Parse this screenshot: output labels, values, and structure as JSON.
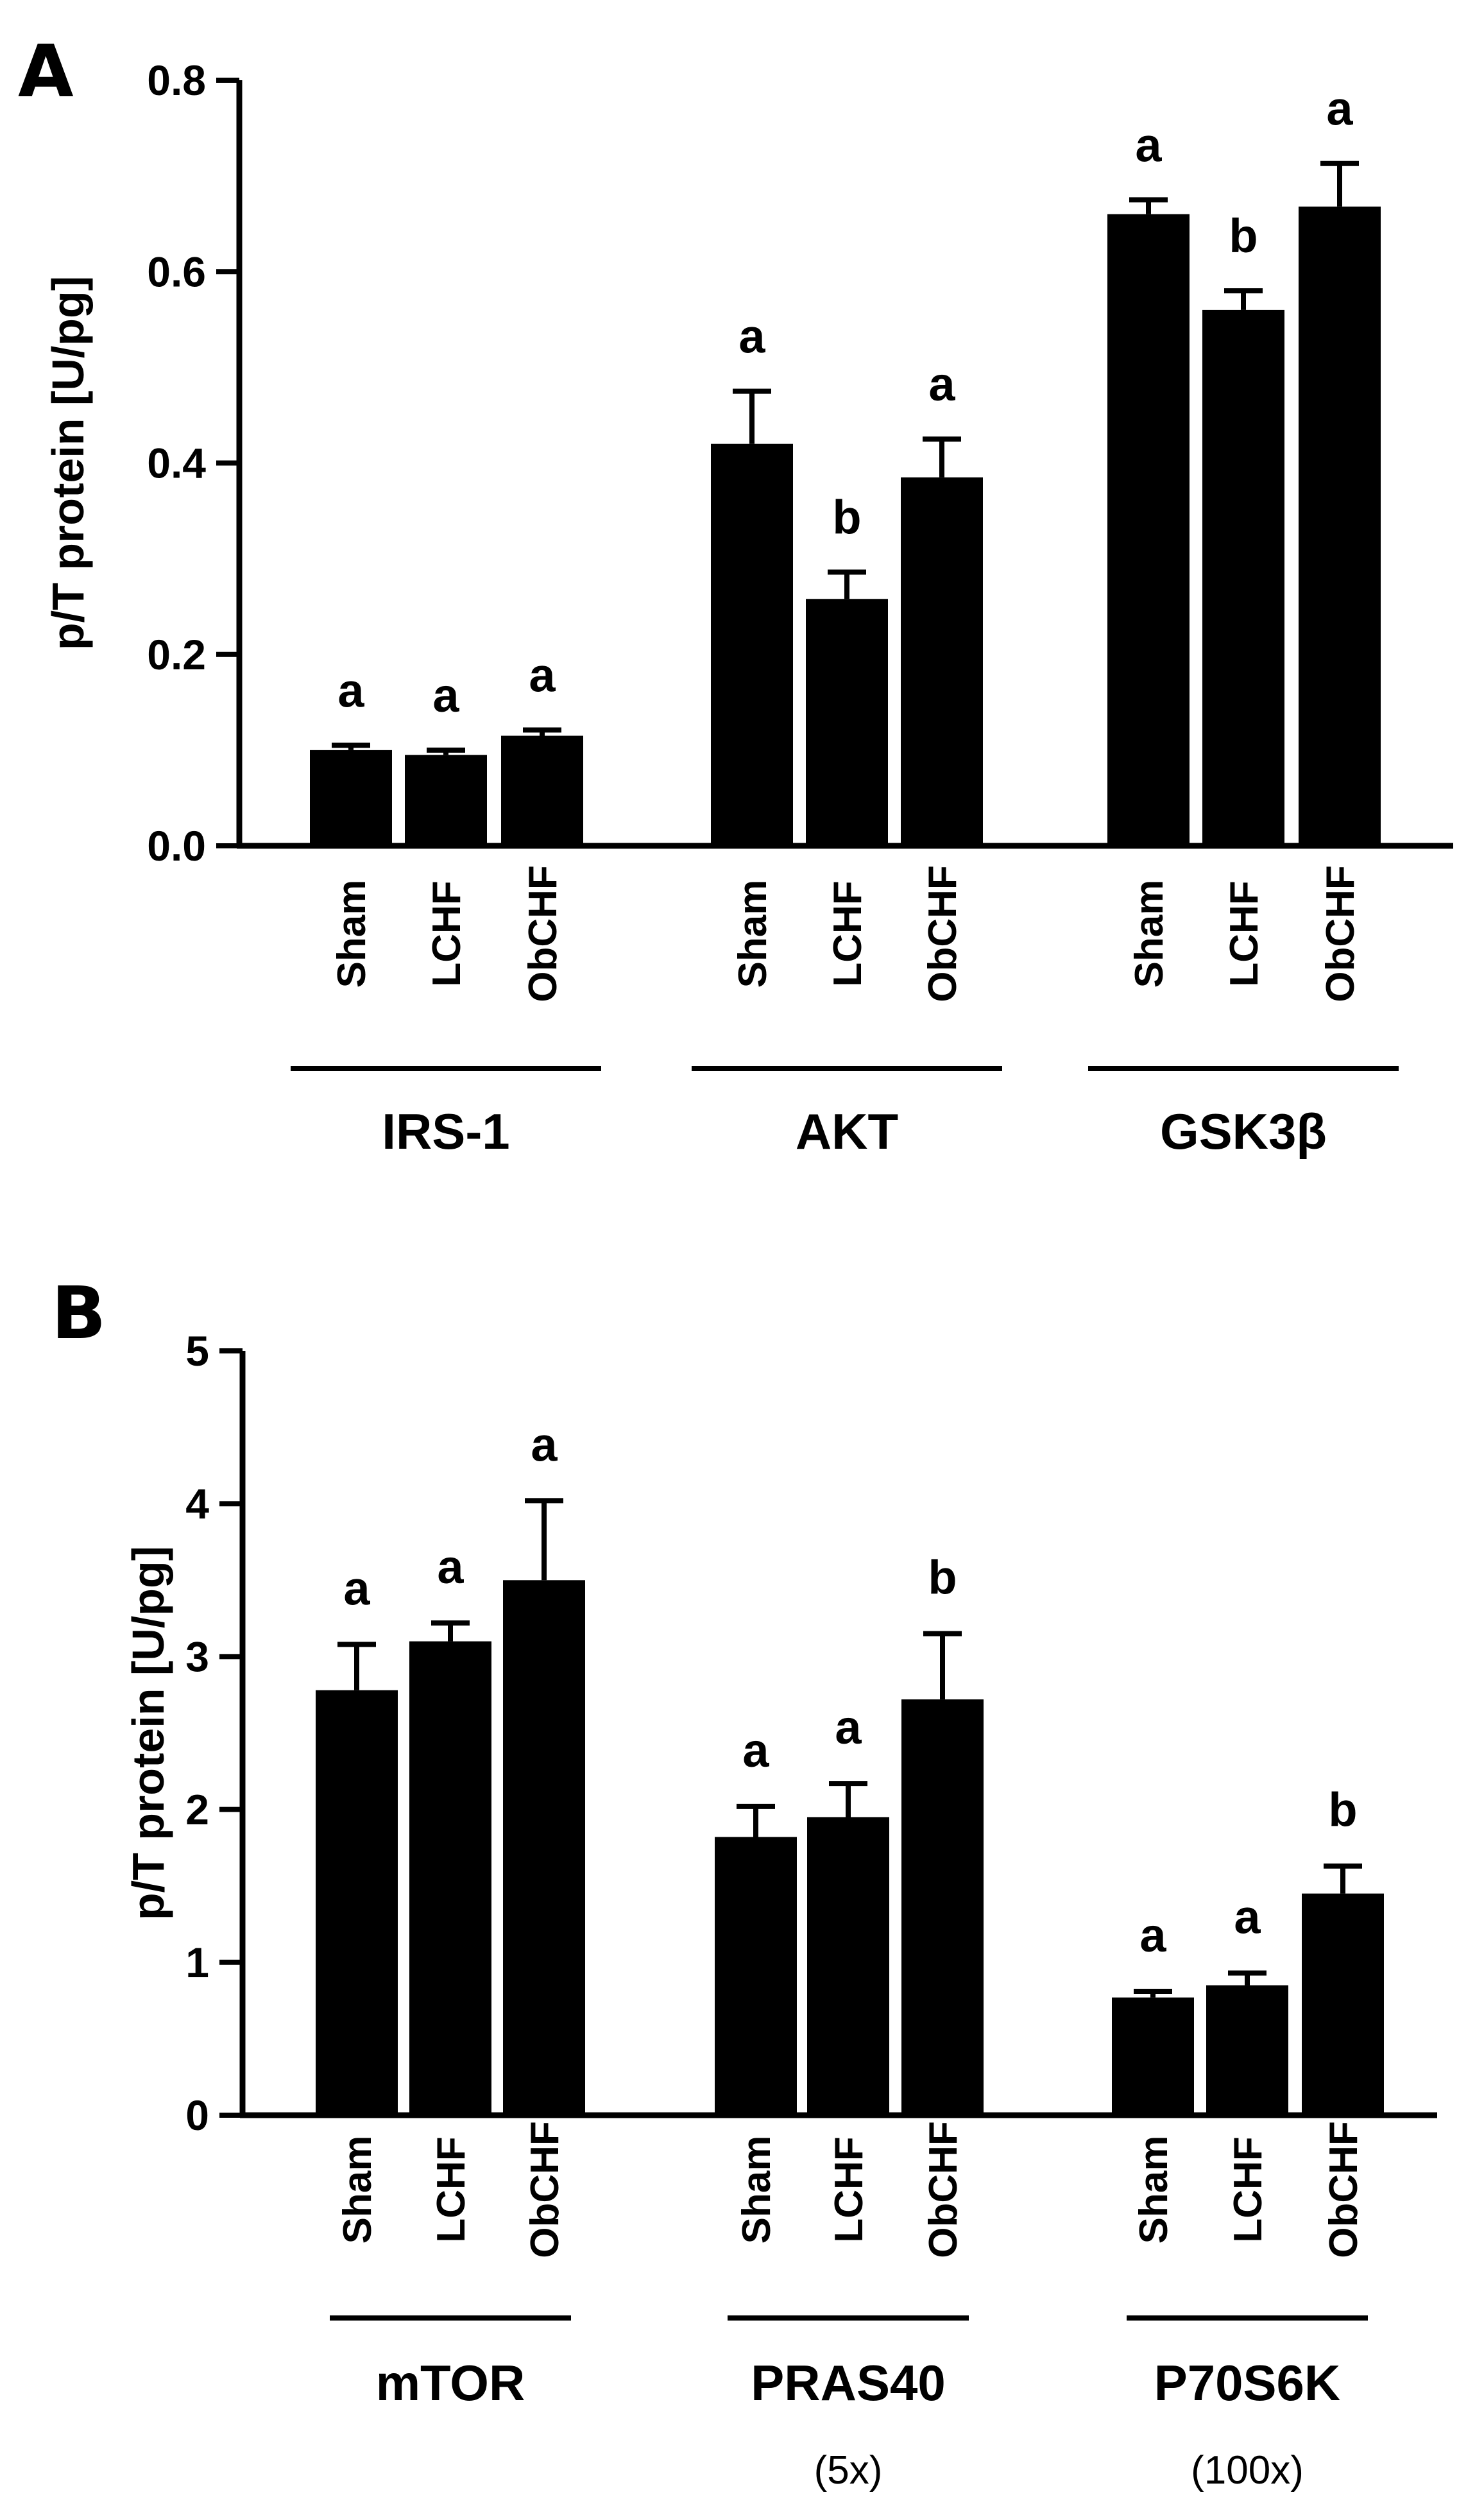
{
  "chart_data": [
    {
      "panel": "A",
      "type": "bar",
      "ylabel": "p/T protein [U/pg]",
      "ylim": [
        0,
        0.8
      ],
      "yticks": [
        "0.0",
        "0.2",
        "0.4",
        "0.6",
        "0.8"
      ],
      "categories": [
        "Sham",
        "LCHF",
        "ObCHF"
      ],
      "groups": [
        {
          "name": "IRS-1",
          "note": "",
          "values": [
            0.1,
            0.095,
            0.115
          ],
          "errors": [
            0.005,
            0.005,
            0.006
          ],
          "labels": [
            "a",
            "a",
            "a"
          ]
        },
        {
          "name": "AKT",
          "note": "",
          "values": [
            0.42,
            0.258,
            0.385
          ],
          "errors": [
            0.055,
            0.028,
            0.04
          ],
          "labels": [
            "a",
            "b",
            "a"
          ]
        },
        {
          "name": "GSK3β",
          "note": "",
          "values": [
            0.66,
            0.56,
            0.668
          ],
          "errors": [
            0.015,
            0.02,
            0.045
          ],
          "labels": [
            "a",
            "b",
            "a"
          ]
        }
      ]
    },
    {
      "panel": "B",
      "type": "bar",
      "ylabel": "p/T protein [U/pg]",
      "ylim": [
        0,
        5
      ],
      "yticks": [
        "0",
        "1",
        "2",
        "3",
        "4",
        "5"
      ],
      "categories": [
        "Sham",
        "LCHF",
        "ObCHF"
      ],
      "groups": [
        {
          "name": "mTOR",
          "note": "",
          "values": [
            2.78,
            3.1,
            3.5
          ],
          "errors": [
            0.3,
            0.12,
            0.52
          ],
          "labels": [
            "a",
            "a",
            "a"
          ]
        },
        {
          "name": "PRAS40",
          "note": "(5x)",
          "values": [
            1.82,
            1.95,
            2.72
          ],
          "errors": [
            0.2,
            0.22,
            0.43
          ],
          "labels": [
            "a",
            "a",
            "b"
          ]
        },
        {
          "name": "P70S6K",
          "note": "(100x)",
          "values": [
            0.77,
            0.85,
            1.45
          ],
          "errors": [
            0.04,
            0.08,
            0.18
          ],
          "labels": [
            "a",
            "a",
            "b"
          ]
        }
      ]
    }
  ],
  "colors": {
    "bar": "#000000",
    "axis": "#000000",
    "background": "#ffffff"
  }
}
